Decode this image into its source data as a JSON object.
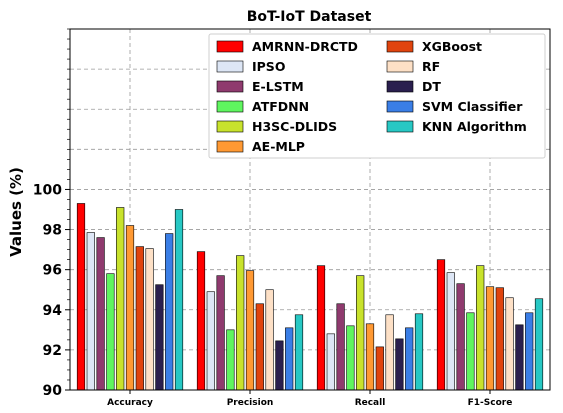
{
  "chart_data": {
    "type": "bar",
    "title": "BoT-IoT  Dataset",
    "xlabel": "",
    "ylabel": "Values (%)",
    "ylim": [
      90,
      108
    ],
    "yticks": [
      90,
      92,
      94,
      96,
      98,
      100
    ],
    "grid": true,
    "legend_position": "top-right",
    "categories": [
      "Accuracy",
      "Precision",
      "Recall",
      "F1-Score"
    ],
    "series": [
      {
        "name": "AMRNN-DRCTD",
        "color": "#ff0000",
        "values": [
          99.3,
          96.9,
          96.2,
          96.5
        ]
      },
      {
        "name": "IPSO",
        "color": "#dde6f5",
        "values": [
          97.85,
          94.9,
          92.8,
          95.85
        ]
      },
      {
        "name": "E-LSTM",
        "color": "#8f3a6e",
        "values": [
          97.6,
          95.7,
          94.3,
          95.3
        ]
      },
      {
        "name": "ATFDNN",
        "color": "#5ff55f",
        "values": [
          95.8,
          93.0,
          93.2,
          93.85
        ]
      },
      {
        "name": "H3SC-DLIDS",
        "color": "#c8e22c",
        "values": [
          99.1,
          96.7,
          95.7,
          96.2
        ]
      },
      {
        "name": "AE-MLP",
        "color": "#ff9933",
        "values": [
          98.2,
          95.95,
          93.3,
          95.15
        ]
      },
      {
        "name": "XGBoost",
        "color": "#e0440e",
        "values": [
          97.15,
          94.3,
          92.15,
          95.1
        ]
      },
      {
        "name": "RF",
        "color": "#fde0c6",
        "values": [
          97.05,
          95.0,
          93.75,
          94.6
        ]
      },
      {
        "name": "DT",
        "color": "#2a1f4e",
        "values": [
          95.25,
          92.45,
          92.55,
          93.25
        ]
      },
      {
        "name": "SVM Classifier",
        "color": "#3a7ee6",
        "values": [
          97.8,
          93.1,
          93.1,
          93.85
        ]
      },
      {
        "name": "KNN Algorithm",
        "color": "#27c8c4",
        "values": [
          99.0,
          93.75,
          93.8,
          94.55
        ]
      }
    ]
  }
}
